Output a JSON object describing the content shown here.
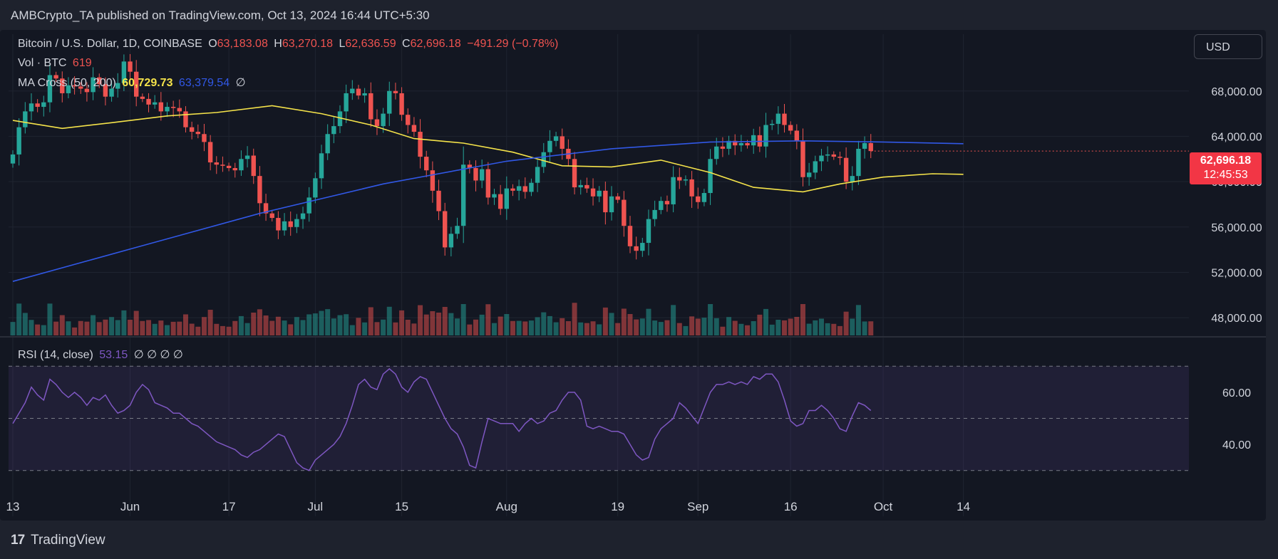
{
  "header": {
    "publisher_line": "AMBCrypto_TA published on TradingView.com, Oct 13, 2024 16:44 UTC+5:30"
  },
  "legend": {
    "symbol": "Bitcoin / U.S. Dollar, 1D, COINBASE",
    "o_label": "O",
    "o_value": "63,183.08",
    "h_label": "H",
    "h_value": "63,270.18",
    "l_label": "L",
    "l_value": "62,636.59",
    "c_label": "C",
    "c_value": "62,696.18",
    "change": "−491.29 (−0.78%)",
    "vol_label": "Vol · BTC",
    "vol_value": "619",
    "ma_label": "MA Cross (50, 200)",
    "ma_fast": "60,729.73",
    "ma_slow": "63,379.54",
    "ma_empty": "∅",
    "rsi_label": "RSI (14, close)",
    "rsi_value": "53.15",
    "rsi_empty": "∅ ∅ ∅ ∅"
  },
  "currency_button": "USD",
  "price_tag": {
    "price": "62,696.18",
    "countdown": "12:45:53"
  },
  "footer": {
    "logo": "17",
    "brand": "TradingView"
  },
  "colors": {
    "up": "#26a69a",
    "down": "#ef5350",
    "ma_fast": "#f5e34a",
    "ma_slow": "#3158e6",
    "rsi": "#7e57c2"
  },
  "chart_data": [
    {
      "type": "candlestick",
      "title": "Bitcoin / U.S. Dollar, 1D, COINBASE",
      "ylim": [
        46500,
        71000
      ],
      "y_ticks": [
        "48,000.00",
        "52,000.00",
        "56,000.00",
        "60,000.00",
        "64,000.00",
        "68,000.00"
      ],
      "y_tick_values": [
        48000,
        52000,
        56000,
        60000,
        64000,
        68000
      ],
      "x_ticks": [
        "13",
        "Jun",
        "17",
        "Jul",
        "15",
        "Aug",
        "19",
        "Sep",
        "16",
        "Oct",
        "14"
      ],
      "x_tick_days": [
        0,
        19,
        35,
        49,
        63,
        80,
        98,
        111,
        126,
        141,
        154
      ],
      "close": [
        62400,
        64800,
        66200,
        66900,
        66600,
        67000,
        69400,
        69100,
        67800,
        68500,
        68400,
        68200,
        67900,
        69200,
        68600,
        67500,
        68200,
        68700,
        70600,
        69700,
        67500,
        67300,
        66800,
        67000,
        66200,
        66600,
        66500,
        66200,
        64800,
        64400,
        64200,
        63500,
        61700,
        61500,
        61400,
        61200,
        61000,
        62000,
        62300,
        60500,
        58100,
        57200,
        56800,
        55700,
        56500,
        56000,
        56700,
        57200,
        58600,
        60300,
        62500,
        64200,
        64900,
        66200,
        67800,
        68200,
        67600,
        67800,
        65500,
        64900,
        66000,
        68000,
        67800,
        65900,
        65000,
        64400,
        62200,
        61000,
        59200,
        57400,
        54200,
        55400,
        56100,
        61500,
        61200,
        60100,
        61100,
        58600,
        58900,
        57600,
        59400,
        59200,
        59600,
        59100,
        59900,
        61300,
        62600,
        63600,
        64000,
        62900,
        62000,
        59500,
        59700,
        59400,
        58700,
        59200,
        57300,
        58700,
        58400,
        56100,
        54300,
        53900,
        54600,
        56700,
        57500,
        58300,
        58000,
        60400,
        60100,
        60200,
        58700,
        58200,
        59000,
        62000,
        63100,
        62900,
        63600,
        63200,
        63400,
        63200,
        64100,
        63100,
        65000,
        65100,
        66000,
        65000,
        64500,
        63600,
        60400,
        60800,
        61800,
        62300,
        62400,
        62200,
        62100,
        60000,
        60500,
        62900,
        63400,
        62700
      ],
      "ma_fast": [
        {
          "day": 0,
          "value": 65400
        },
        {
          "day": 8,
          "value": 64700
        },
        {
          "day": 16,
          "value": 65200
        },
        {
          "day": 25,
          "value": 65800
        },
        {
          "day": 33,
          "value": 66100
        },
        {
          "day": 42,
          "value": 66700
        },
        {
          "day": 50,
          "value": 66000
        },
        {
          "day": 58,
          "value": 65000
        },
        {
          "day": 65,
          "value": 63800
        },
        {
          "day": 73,
          "value": 63400
        },
        {
          "day": 81,
          "value": 62600
        },
        {
          "day": 89,
          "value": 61400
        },
        {
          "day": 97,
          "value": 61300
        },
        {
          "day": 105,
          "value": 61900
        },
        {
          "day": 113,
          "value": 60800
        },
        {
          "day": 120,
          "value": 59500
        },
        {
          "day": 128,
          "value": 59100
        },
        {
          "day": 134,
          "value": 59800
        },
        {
          "day": 141,
          "value": 60400
        },
        {
          "day": 149,
          "value": 60700
        },
        {
          "day": 154,
          "value": 60650
        }
      ],
      "ma_slow": [
        {
          "day": 0,
          "value": 51200
        },
        {
          "day": 20,
          "value": 54200
        },
        {
          "day": 40,
          "value": 57200
        },
        {
          "day": 60,
          "value": 59800
        },
        {
          "day": 80,
          "value": 61800
        },
        {
          "day": 97,
          "value": 62900
        },
        {
          "day": 113,
          "value": 63500
        },
        {
          "day": 128,
          "value": 63600
        },
        {
          "day": 141,
          "value": 63500
        },
        {
          "day": 154,
          "value": 63350
        }
      ],
      "volume_note": "Vol · BTC 619"
    },
    {
      "type": "line",
      "title": "RSI (14, close)",
      "ylim": [
        22,
        78
      ],
      "y_ticks": [
        "40.00",
        "60.00"
      ],
      "y_tick_values": [
        40,
        60
      ],
      "bands": [
        30,
        50,
        70
      ],
      "values": [
        48,
        52,
        56,
        62,
        59,
        57,
        65,
        63,
        60,
        58,
        60,
        58,
        55,
        58,
        57,
        59,
        55,
        52,
        53,
        55,
        60,
        63,
        61,
        56,
        55,
        54,
        52,
        52,
        50,
        48,
        47,
        45,
        43,
        41,
        40,
        39,
        38,
        36,
        35,
        37,
        38,
        40,
        42,
        44,
        43,
        38,
        33,
        31,
        30,
        34,
        36,
        38,
        40,
        43,
        48,
        55,
        63,
        65,
        62,
        61,
        67,
        69,
        67,
        62,
        60,
        64,
        66,
        65,
        60,
        55,
        50,
        46,
        44,
        39,
        32,
        31,
        41,
        50,
        49,
        48,
        48,
        48,
        45,
        48,
        50,
        48,
        49,
        52,
        53,
        57,
        60,
        60,
        57,
        47,
        46,
        47,
        46,
        45,
        45,
        44,
        40,
        36,
        34,
        35,
        42,
        46,
        48,
        50,
        56,
        54,
        51,
        48,
        54,
        60,
        63,
        63,
        64,
        63,
        64,
        63,
        66,
        65,
        67,
        67,
        64,
        57,
        49,
        47,
        48,
        53,
        53,
        55,
        53,
        50,
        46,
        45,
        51,
        56,
        55,
        53
      ]
    }
  ]
}
